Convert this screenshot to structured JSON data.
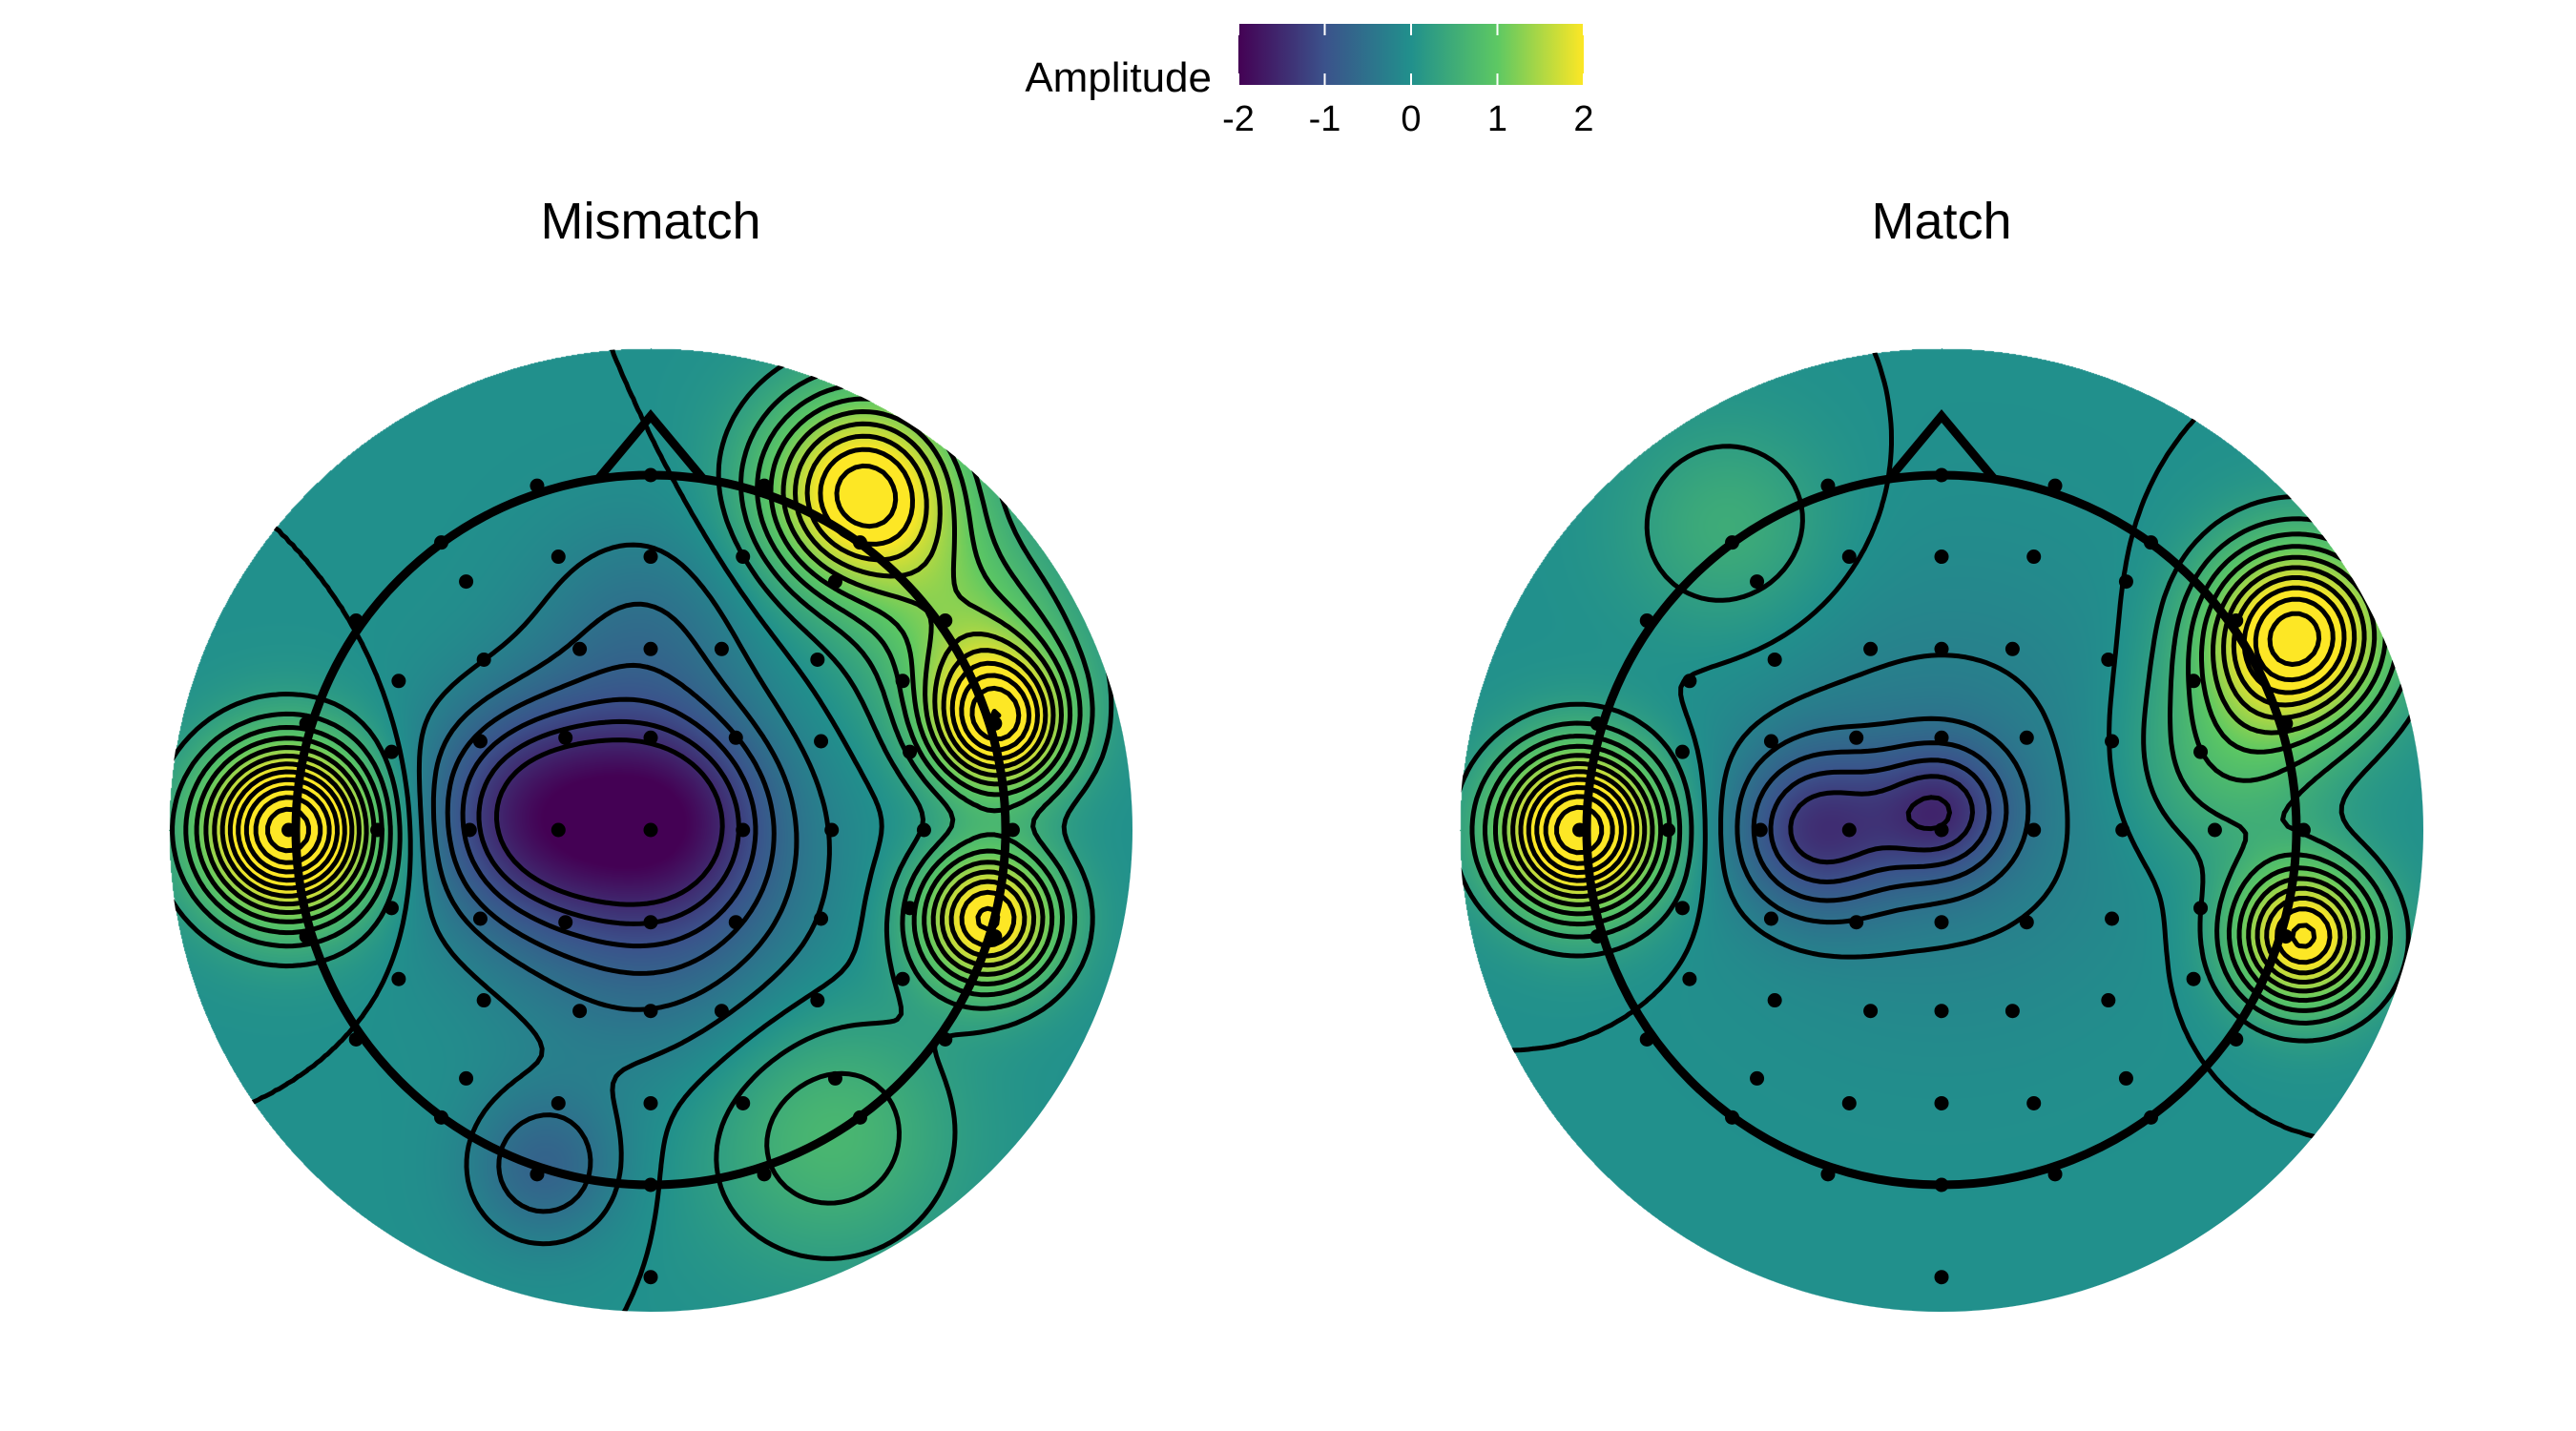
{
  "chart_data": {
    "type": "heatmap",
    "subtype": "eeg-topographic-map",
    "colorscale": "viridis",
    "colorscale_stops": [
      "#440154",
      "#3b528b",
      "#21908c",
      "#5dc863",
      "#fde725"
    ],
    "legend": {
      "title": "Amplitude",
      "position": "top-center",
      "range": [
        -2,
        2
      ],
      "ticks": [
        -2,
        -1,
        0,
        1,
        2
      ],
      "tick_labels": [
        "-2",
        "-1",
        "0",
        "1",
        "2"
      ]
    },
    "contours": {
      "negative_style": "dashed",
      "positive_style": "solid",
      "color": "#000000"
    },
    "panels": [
      {
        "title": "Mismatch",
        "sources": [
          {
            "x": -0.32,
            "y": 0.05,
            "amplitude": -1.5,
            "spread": 0.22
          },
          {
            "x": 0.06,
            "y": 0.05,
            "amplitude": -1.3,
            "spread": 0.2
          },
          {
            "x": 0.03,
            "y": -0.25,
            "amplitude": -0.7,
            "spread": 0.3
          },
          {
            "x": -0.02,
            "y": 0.55,
            "amplitude": -0.5,
            "spread": 0.22
          },
          {
            "x": -1.02,
            "y": 0.0,
            "amplitude": 3.2,
            "spread": 0.17
          },
          {
            "x": 0.98,
            "y": 0.3,
            "amplitude": 2.3,
            "spread": 0.14
          },
          {
            "x": 0.95,
            "y": -0.25,
            "amplitude": 2.3,
            "spread": 0.14
          },
          {
            "x": 0.6,
            "y": 0.95,
            "amplitude": 2.4,
            "spread": 0.2
          },
          {
            "x": 0.9,
            "y": 0.55,
            "amplitude": 1.0,
            "spread": 0.2
          },
          {
            "x": -0.3,
            "y": -0.95,
            "amplitude": -0.7,
            "spread": 0.15
          },
          {
            "x": 0.5,
            "y": -0.85,
            "amplitude": 0.7,
            "spread": 0.25
          }
        ]
      },
      {
        "title": "Match",
        "sources": [
          {
            "x": -0.35,
            "y": 0.0,
            "amplitude": -1.15,
            "spread": 0.16
          },
          {
            "x": 0.0,
            "y": 0.05,
            "amplitude": -1.05,
            "spread": 0.13
          },
          {
            "x": 0.0,
            "y": 0.1,
            "amplitude": -0.4,
            "spread": 0.4
          },
          {
            "x": -1.02,
            "y": 0.0,
            "amplitude": 3.0,
            "spread": 0.16
          },
          {
            "x": 1.0,
            "y": 0.55,
            "amplitude": 2.6,
            "spread": 0.18
          },
          {
            "x": 1.02,
            "y": -0.3,
            "amplitude": 2.3,
            "spread": 0.14
          },
          {
            "x": 0.8,
            "y": 0.2,
            "amplitude": 0.7,
            "spread": 0.2
          },
          {
            "x": -0.6,
            "y": 0.85,
            "amplitude": 0.5,
            "spread": 0.2
          }
        ]
      }
    ],
    "electrodes": [
      [
        0.0,
        1.0
      ],
      [
        0.0,
        0.77
      ],
      [
        0.0,
        0.51
      ],
      [
        0.0,
        0.26
      ],
      [
        0.0,
        0.0
      ],
      [
        0.0,
        -0.26
      ],
      [
        0.0,
        -0.51
      ],
      [
        0.0,
        -0.77
      ],
      [
        0.0,
        -1.0
      ],
      [
        0.0,
        -1.26
      ],
      [
        -0.32,
        0.97
      ],
      [
        0.32,
        0.97
      ],
      [
        -0.59,
        0.81
      ],
      [
        0.59,
        0.81
      ],
      [
        -0.83,
        0.59
      ],
      [
        0.83,
        0.59
      ],
      [
        -0.97,
        0.3
      ],
      [
        0.97,
        0.3
      ],
      [
        -1.02,
        0.0
      ],
      [
        1.02,
        0.0
      ],
      [
        -0.97,
        -0.3
      ],
      [
        0.97,
        -0.3
      ],
      [
        -0.83,
        -0.59
      ],
      [
        0.83,
        -0.59
      ],
      [
        -0.59,
        -0.81
      ],
      [
        0.59,
        -0.81
      ],
      [
        -0.32,
        -0.97
      ],
      [
        0.32,
        -0.97
      ],
      [
        -0.26,
        0.77
      ],
      [
        0.26,
        0.77
      ],
      [
        -0.52,
        0.7
      ],
      [
        0.52,
        0.7
      ],
      [
        -0.2,
        0.51
      ],
      [
        0.2,
        0.51
      ],
      [
        -0.47,
        0.48
      ],
      [
        0.47,
        0.48
      ],
      [
        -0.71,
        0.42
      ],
      [
        0.71,
        0.42
      ],
      [
        -0.24,
        0.26
      ],
      [
        0.24,
        0.26
      ],
      [
        -0.48,
        0.25
      ],
      [
        0.48,
        0.25
      ],
      [
        -0.73,
        0.22
      ],
      [
        0.73,
        0.22
      ],
      [
        -0.26,
        0.0
      ],
      [
        0.26,
        0.0
      ],
      [
        -0.51,
        0.0
      ],
      [
        0.51,
        0.0
      ],
      [
        -0.77,
        0.0
      ],
      [
        0.77,
        0.0
      ],
      [
        -0.24,
        -0.26
      ],
      [
        0.24,
        -0.26
      ],
      [
        -0.48,
        -0.25
      ],
      [
        0.48,
        -0.25
      ],
      [
        -0.73,
        -0.22
      ],
      [
        0.73,
        -0.22
      ],
      [
        -0.2,
        -0.51
      ],
      [
        0.2,
        -0.51
      ],
      [
        -0.47,
        -0.48
      ],
      [
        0.47,
        -0.48
      ],
      [
        -0.71,
        -0.42
      ],
      [
        0.71,
        -0.42
      ],
      [
        -0.26,
        -0.77
      ],
      [
        0.26,
        -0.77
      ],
      [
        -0.52,
        -0.7
      ],
      [
        0.52,
        -0.7
      ]
    ]
  }
}
